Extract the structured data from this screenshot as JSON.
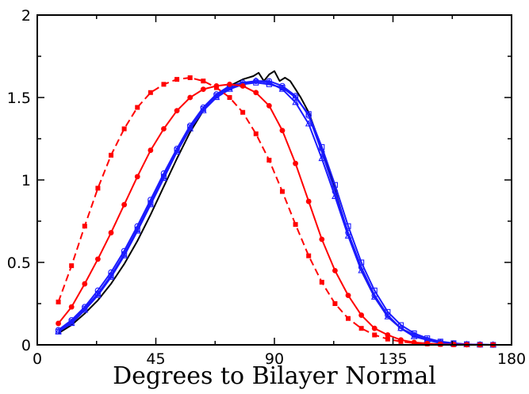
{
  "chart_data": {
    "type": "line",
    "title": "",
    "xlabel": "Degrees to Bilayer Normal",
    "ylabel": "",
    "xlim": [
      0,
      180
    ],
    "ylim": [
      0,
      2
    ],
    "xticks": [
      0,
      45,
      90,
      135,
      180
    ],
    "xtick_labels": [
      "0",
      "45",
      "90",
      "135",
      "180"
    ],
    "yticks": [
      0,
      0.5,
      1,
      1.5,
      2
    ],
    "ytick_labels": [
      "0",
      "0.5",
      "1",
      "1.5",
      "2"
    ],
    "grid": false,
    "legend": "none",
    "series": [
      {
        "color": "#000000",
        "line": "solid",
        "marker": "none",
        "x": [
          8,
          13,
          18,
          23,
          28,
          33,
          38,
          43,
          48,
          53,
          58,
          63,
          68,
          73,
          78,
          82,
          84,
          86,
          88,
          90,
          92,
          94,
          96,
          98,
          100,
          103,
          108,
          113,
          118,
          123,
          128,
          133,
          138,
          143,
          148,
          153,
          158,
          163,
          168,
          172
        ],
        "y": [
          0.07,
          0.12,
          0.19,
          0.27,
          0.37,
          0.49,
          0.63,
          0.79,
          0.96,
          1.13,
          1.29,
          1.42,
          1.51,
          1.57,
          1.61,
          1.63,
          1.65,
          1.6,
          1.64,
          1.66,
          1.6,
          1.62,
          1.6,
          1.55,
          1.5,
          1.41,
          1.19,
          0.94,
          0.67,
          0.45,
          0.29,
          0.17,
          0.1,
          0.06,
          0.03,
          0.01,
          0.005,
          0.002,
          0.001,
          0.0
        ]
      },
      {
        "color": "#1a1aff",
        "line": "solid",
        "marker": "open-square",
        "x": [
          8,
          13,
          18,
          23,
          28,
          33,
          38,
          43,
          48,
          53,
          58,
          63,
          68,
          73,
          78,
          83,
          88,
          93,
          98,
          103,
          108,
          113,
          118,
          123,
          128,
          133,
          138,
          143,
          148,
          153,
          158,
          163,
          168,
          173
        ],
        "y": [
          0.08,
          0.14,
          0.22,
          0.31,
          0.42,
          0.55,
          0.7,
          0.86,
          1.02,
          1.18,
          1.32,
          1.43,
          1.51,
          1.56,
          1.58,
          1.59,
          1.58,
          1.56,
          1.5,
          1.4,
          1.2,
          0.97,
          0.72,
          0.5,
          0.33,
          0.2,
          0.12,
          0.07,
          0.04,
          0.02,
          0.01,
          0.004,
          0.001,
          0.0
        ]
      },
      {
        "color": "#1a1aff",
        "line": "solid",
        "marker": "open-circle",
        "x": [
          8,
          13,
          18,
          23,
          28,
          33,
          38,
          43,
          48,
          53,
          58,
          63,
          68,
          73,
          78,
          83,
          88,
          93,
          98,
          103,
          108,
          113,
          118,
          123,
          128,
          133,
          138,
          143,
          148,
          153,
          158,
          163,
          168,
          173
        ],
        "y": [
          0.09,
          0.15,
          0.23,
          0.33,
          0.44,
          0.57,
          0.72,
          0.88,
          1.04,
          1.19,
          1.33,
          1.44,
          1.52,
          1.57,
          1.59,
          1.6,
          1.6,
          1.57,
          1.51,
          1.39,
          1.17,
          0.93,
          0.68,
          0.47,
          0.3,
          0.18,
          0.1,
          0.06,
          0.03,
          0.015,
          0.008,
          0.003,
          0.001,
          0.0
        ]
      },
      {
        "color": "#1a1aff",
        "line": "solid",
        "marker": "open-triangle",
        "x": [
          8,
          13,
          18,
          23,
          28,
          33,
          38,
          43,
          48,
          53,
          58,
          63,
          68,
          73,
          78,
          83,
          88,
          93,
          98,
          103,
          108,
          113,
          118,
          123,
          128,
          133,
          138,
          143,
          148,
          153,
          158,
          163,
          168,
          173
        ],
        "y": [
          0.08,
          0.13,
          0.21,
          0.3,
          0.41,
          0.54,
          0.69,
          0.85,
          1.01,
          1.17,
          1.31,
          1.42,
          1.5,
          1.55,
          1.58,
          1.6,
          1.59,
          1.55,
          1.47,
          1.34,
          1.13,
          0.9,
          0.66,
          0.45,
          0.29,
          0.17,
          0.1,
          0.05,
          0.03,
          0.01,
          0.005,
          0.002,
          0.001,
          0.0
        ]
      },
      {
        "color": "#ff0000",
        "line": "solid",
        "marker": "filled-circle",
        "x": [
          8,
          13,
          18,
          23,
          28,
          33,
          38,
          43,
          48,
          53,
          58,
          63,
          68,
          73,
          78,
          83,
          88,
          93,
          98,
          103,
          108,
          113,
          118,
          123,
          128,
          133,
          138,
          143,
          148,
          153,
          158,
          163,
          168,
          173
        ],
        "y": [
          0.13,
          0.23,
          0.37,
          0.52,
          0.68,
          0.85,
          1.02,
          1.18,
          1.31,
          1.42,
          1.5,
          1.55,
          1.57,
          1.58,
          1.57,
          1.53,
          1.45,
          1.3,
          1.1,
          0.87,
          0.64,
          0.45,
          0.3,
          0.18,
          0.1,
          0.06,
          0.03,
          0.015,
          0.008,
          0.004,
          0.002,
          0.001,
          0.0,
          0.0
        ]
      },
      {
        "color": "#ff0000",
        "line": "dashed",
        "marker": "filled-square",
        "x": [
          8,
          13,
          18,
          23,
          28,
          33,
          38,
          43,
          48,
          53,
          58,
          63,
          68,
          73,
          78,
          83,
          88,
          93,
          98,
          103,
          108,
          113,
          118,
          123,
          128,
          133,
          138,
          143,
          148,
          153,
          158,
          163,
          168,
          173
        ],
        "y": [
          0.26,
          0.48,
          0.72,
          0.95,
          1.15,
          1.31,
          1.44,
          1.53,
          1.58,
          1.61,
          1.62,
          1.6,
          1.56,
          1.5,
          1.41,
          1.28,
          1.12,
          0.93,
          0.73,
          0.54,
          0.38,
          0.25,
          0.16,
          0.1,
          0.06,
          0.035,
          0.02,
          0.01,
          0.006,
          0.003,
          0.001,
          0.0,
          0.0,
          0.0
        ]
      }
    ]
  }
}
